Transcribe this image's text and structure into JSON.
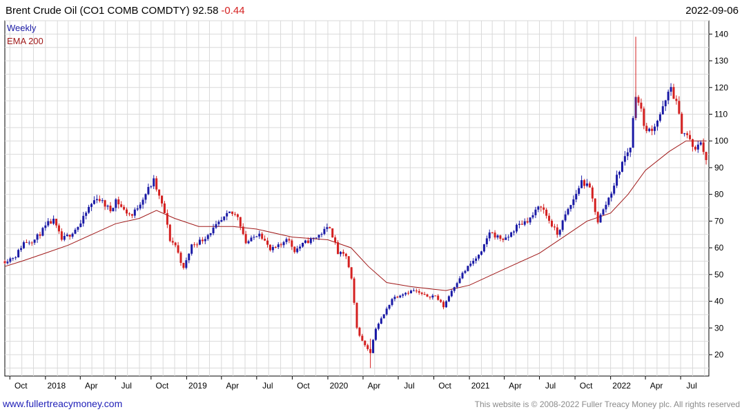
{
  "header": {
    "title": "Brent Crude Oil  (CO1 COMB COMDTY) 92.58",
    "change": "-0.44",
    "date": "2022-09-06"
  },
  "legend": {
    "weekly": "Weekly",
    "ema": "EMA 200"
  },
  "footer": {
    "website": "www.fullertreacymoney.com",
    "copyright": "This website is © 2008-2022 Fuller Treacy Money plc. All rights reserved"
  },
  "colors": {
    "up": "#1a1aa6",
    "down": "#d42020",
    "ema": "#a01818",
    "grid": "#d9d9d9",
    "link": "#2020b8"
  },
  "chart_data": {
    "type": "line",
    "title": "Brent Crude Oil  (CO1 COMB COMDTY) 92.58",
    "frequency": "weekly",
    "ylim": [
      12,
      145
    ],
    "y_ticks": [
      20,
      30,
      40,
      50,
      60,
      70,
      80,
      90,
      100,
      110,
      120,
      130,
      140
    ],
    "x_range": [
      "2017-09-18",
      "2022-09-12"
    ],
    "x_ticks": [
      {
        "label": "Oct",
        "date": "2017-10-01"
      },
      {
        "label": "2018",
        "date": "2018-01-01"
      },
      {
        "label": "Apr",
        "date": "2018-04-01"
      },
      {
        "label": "Jul",
        "date": "2018-07-01"
      },
      {
        "label": "Oct",
        "date": "2018-10-01"
      },
      {
        "label": "2019",
        "date": "2019-01-01"
      },
      {
        "label": "Apr",
        "date": "2019-04-01"
      },
      {
        "label": "Jul",
        "date": "2019-07-01"
      },
      {
        "label": "Oct",
        "date": "2019-10-01"
      },
      {
        "label": "2020",
        "date": "2020-01-01"
      },
      {
        "label": "Apr",
        "date": "2020-04-01"
      },
      {
        "label": "Jul",
        "date": "2020-07-01"
      },
      {
        "label": "Oct",
        "date": "2020-10-01"
      },
      {
        "label": "2021",
        "date": "2021-01-01"
      },
      {
        "label": "Apr",
        "date": "2021-04-01"
      },
      {
        "label": "Jul",
        "date": "2021-07-01"
      },
      {
        "label": "Oct",
        "date": "2021-10-01"
      },
      {
        "label": "2022",
        "date": "2022-01-01"
      },
      {
        "label": "Apr",
        "date": "2022-04-01"
      },
      {
        "label": "Jul",
        "date": "2022-07-01"
      }
    ],
    "price_path": [
      [
        "2017-09-18",
        55
      ],
      [
        "2017-10-16",
        57
      ],
      [
        "2017-11-06",
        62
      ],
      [
        "2017-12-04",
        63
      ],
      [
        "2018-01-08",
        69
      ],
      [
        "2018-01-22",
        70
      ],
      [
        "2018-02-12",
        63
      ],
      [
        "2018-03-05",
        65
      ],
      [
        "2018-04-02",
        69
      ],
      [
        "2018-04-23",
        75
      ],
      [
        "2018-05-14",
        79
      ],
      [
        "2018-06-04",
        76
      ],
      [
        "2018-06-18",
        74
      ],
      [
        "2018-07-02",
        78
      ],
      [
        "2018-07-23",
        74
      ],
      [
        "2018-08-13",
        72
      ],
      [
        "2018-09-03",
        77
      ],
      [
        "2018-09-24",
        82
      ],
      [
        "2018-10-08",
        85
      ],
      [
        "2018-10-22",
        79
      ],
      [
        "2018-11-05",
        73
      ],
      [
        "2018-11-19",
        63
      ],
      [
        "2018-12-03",
        61
      ],
      [
        "2018-12-24",
        52
      ],
      [
        "2019-01-14",
        61
      ],
      [
        "2019-02-11",
        63
      ],
      [
        "2019-03-04",
        66
      ],
      [
        "2019-04-01",
        70
      ],
      [
        "2019-04-22",
        73
      ],
      [
        "2019-05-13",
        72
      ],
      [
        "2019-06-03",
        62
      ],
      [
        "2019-06-17",
        63
      ],
      [
        "2019-07-08",
        66
      ],
      [
        "2019-08-05",
        59
      ],
      [
        "2019-09-02",
        61
      ],
      [
        "2019-09-16",
        64
      ],
      [
        "2019-10-07",
        59
      ],
      [
        "2019-11-04",
        62
      ],
      [
        "2019-12-02",
        64
      ],
      [
        "2020-01-06",
        68
      ],
      [
        "2020-01-27",
        58
      ],
      [
        "2020-02-17",
        57
      ],
      [
        "2020-03-02",
        48
      ],
      [
        "2020-03-16",
        30
      ],
      [
        "2020-03-30",
        25
      ],
      [
        "2020-04-20",
        21
      ],
      [
        "2020-05-04",
        30
      ],
      [
        "2020-05-25",
        35
      ],
      [
        "2020-06-15",
        41
      ],
      [
        "2020-07-13",
        43
      ],
      [
        "2020-08-10",
        44
      ],
      [
        "2020-09-07",
        42
      ],
      [
        "2020-10-05",
        42
      ],
      [
        "2020-10-26",
        38
      ],
      [
        "2020-11-16",
        44
      ],
      [
        "2020-12-07",
        49
      ],
      [
        "2021-01-04",
        54
      ],
      [
        "2021-02-01",
        58
      ],
      [
        "2021-02-22",
        66
      ],
      [
        "2021-03-15",
        64
      ],
      [
        "2021-04-05",
        63
      ],
      [
        "2021-05-03",
        68
      ],
      [
        "2021-06-07",
        71
      ],
      [
        "2021-07-05",
        76
      ],
      [
        "2021-07-19",
        72
      ],
      [
        "2021-08-16",
        65
      ],
      [
        "2021-09-06",
        72
      ],
      [
        "2021-09-27",
        78
      ],
      [
        "2021-10-18",
        85
      ],
      [
        "2021-11-08",
        82
      ],
      [
        "2021-11-29",
        70
      ],
      [
        "2021-12-13",
        74
      ],
      [
        "2022-01-03",
        81
      ],
      [
        "2022-01-31",
        92
      ],
      [
        "2022-02-21",
        98
      ],
      [
        "2022-03-07",
        118
      ],
      [
        "2022-03-21",
        111
      ],
      [
        "2022-04-04",
        103
      ],
      [
        "2022-04-25",
        106
      ],
      [
        "2022-05-16",
        112
      ],
      [
        "2022-06-06",
        120
      ],
      [
        "2022-06-20",
        114
      ],
      [
        "2022-07-04",
        104
      ],
      [
        "2022-07-18",
        102
      ],
      [
        "2022-08-08",
        96
      ],
      [
        "2022-08-22",
        100
      ],
      [
        "2022-09-06",
        92.58
      ]
    ],
    "ema_200": [
      [
        "2017-09-18",
        53
      ],
      [
        "2017-11-01",
        55
      ],
      [
        "2018-01-01",
        58
      ],
      [
        "2018-03-01",
        61
      ],
      [
        "2018-05-01",
        65
      ],
      [
        "2018-07-01",
        69
      ],
      [
        "2018-09-01",
        71
      ],
      [
        "2018-10-15",
        74
      ],
      [
        "2018-12-01",
        71
      ],
      [
        "2019-02-01",
        68
      ],
      [
        "2019-05-01",
        68
      ],
      [
        "2019-07-01",
        67
      ],
      [
        "2019-10-01",
        64
      ],
      [
        "2020-01-01",
        63
      ],
      [
        "2020-03-01",
        60
      ],
      [
        "2020-04-15",
        53
      ],
      [
        "2020-06-01",
        47
      ],
      [
        "2020-08-01",
        45.5
      ],
      [
        "2020-10-01",
        44.5
      ],
      [
        "2020-11-01",
        44
      ],
      [
        "2021-01-01",
        46
      ],
      [
        "2021-04-01",
        52
      ],
      [
        "2021-07-01",
        58
      ],
      [
        "2021-09-01",
        64
      ],
      [
        "2021-11-01",
        70
      ],
      [
        "2022-01-01",
        73
      ],
      [
        "2022-02-15",
        80
      ],
      [
        "2022-04-01",
        89
      ],
      [
        "2022-06-01",
        96
      ],
      [
        "2022-07-15",
        100
      ],
      [
        "2022-09-06",
        100
      ]
    ],
    "price_min": 15,
    "price_max": 139
  }
}
